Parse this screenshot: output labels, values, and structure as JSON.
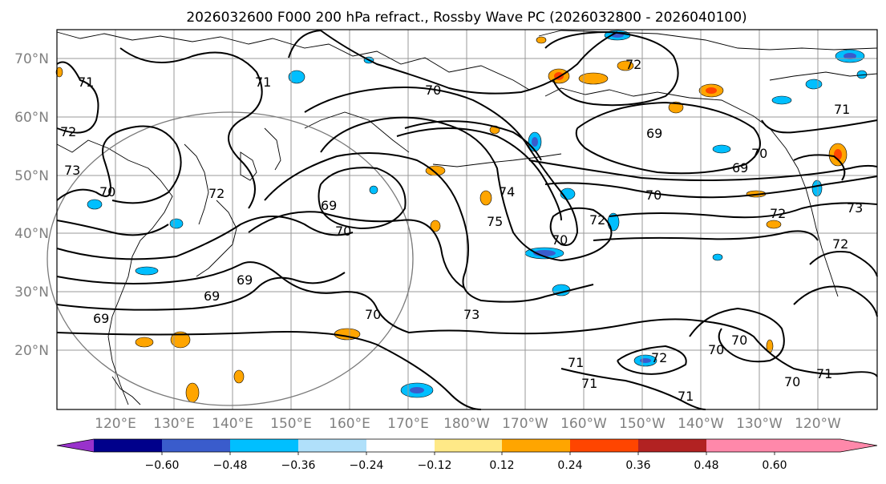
{
  "title": "2026032600 F000 200 hPa refract., Rossby Wave PC (2026032800 - 2026040100)",
  "map": {
    "lat_ticks": [
      "70°N",
      "60°N",
      "50°N",
      "40°N",
      "30°N",
      "20°N"
    ],
    "lon_ticks": [
      "120°E",
      "130°E",
      "140°E",
      "150°E",
      "160°E",
      "170°E",
      "180°W",
      "170°W",
      "160°W",
      "150°W",
      "140°W",
      "130°W",
      "120°W"
    ]
  },
  "contour_labels": [
    {
      "text": "71"
    },
    {
      "text": "70"
    },
    {
      "text": "72"
    },
    {
      "text": "71"
    },
    {
      "text": "72"
    },
    {
      "text": "73"
    },
    {
      "text": "70"
    },
    {
      "text": "72"
    },
    {
      "text": "69"
    },
    {
      "text": "69"
    },
    {
      "text": "70"
    },
    {
      "text": "69"
    },
    {
      "text": "69"
    },
    {
      "text": "70"
    },
    {
      "text": "75"
    },
    {
      "text": "74"
    },
    {
      "text": "70"
    },
    {
      "text": "73"
    },
    {
      "text": "70"
    },
    {
      "text": "71"
    },
    {
      "text": "71"
    },
    {
      "text": "72"
    },
    {
      "text": "71"
    },
    {
      "text": "70"
    },
    {
      "text": "70"
    },
    {
      "text": "70"
    },
    {
      "text": "71"
    },
    {
      "text": "69"
    },
    {
      "text": "69"
    },
    {
      "text": "70"
    },
    {
      "text": "72"
    },
    {
      "text": "72"
    },
    {
      "text": "71"
    },
    {
      "text": "72"
    },
    {
      "text": "73"
    }
  ],
  "colorbar": {
    "colors": [
      "#9932cc",
      "#00008b",
      "#3a5ccc",
      "#00bfff",
      "#b0e0fa",
      "#ffffff",
      "#ffe987",
      "#ffa500",
      "#ff4500",
      "#b22222",
      "#ff88aa"
    ],
    "tick_labels": [
      "−0.60",
      "−0.48",
      "−0.36",
      "−0.24",
      "−0.12",
      "0.12",
      "0.24",
      "0.36",
      "0.48",
      "0.60"
    ]
  }
}
